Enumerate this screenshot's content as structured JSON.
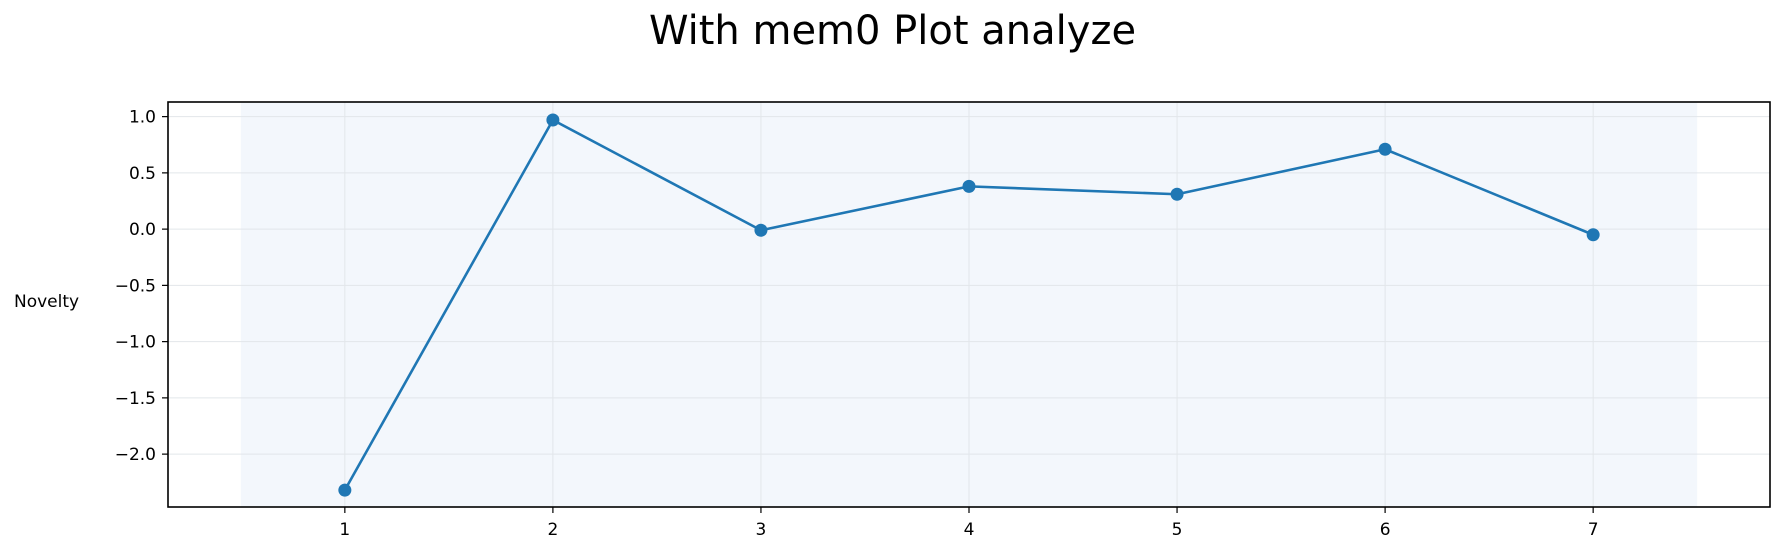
{
  "chart_data": {
    "type": "line",
    "title": "With mem0 Plot analyze",
    "xlabel": "",
    "ylabel": "Novelty",
    "x": [
      1,
      2,
      3,
      4,
      5,
      6,
      7
    ],
    "series": [
      {
        "name": "",
        "values": [
          -2.32,
          0.97,
          -0.01,
          0.38,
          0.31,
          0.71,
          -0.05
        ]
      }
    ],
    "xticks": [
      1,
      2,
      3,
      4,
      5,
      6,
      7
    ],
    "yticks": [
      1.0,
      0.5,
      0.0,
      -0.5,
      -1.0,
      -1.5,
      -2.0
    ],
    "ytick_labels": [
      "1.0",
      "0.5",
      "0.0",
      "−0.5",
      "−1.0",
      "−1.5",
      "−2.0"
    ],
    "xlim": [
      0.15,
      7.85
    ],
    "ylim": [
      -2.47,
      1.13
    ],
    "shaded_region": [
      0.5,
      7.5
    ],
    "grid": true,
    "colors": {
      "line": "#1f77b4",
      "shade": "#f3f7fc",
      "grid": "#e2e6ea",
      "axes": "#000000"
    }
  }
}
